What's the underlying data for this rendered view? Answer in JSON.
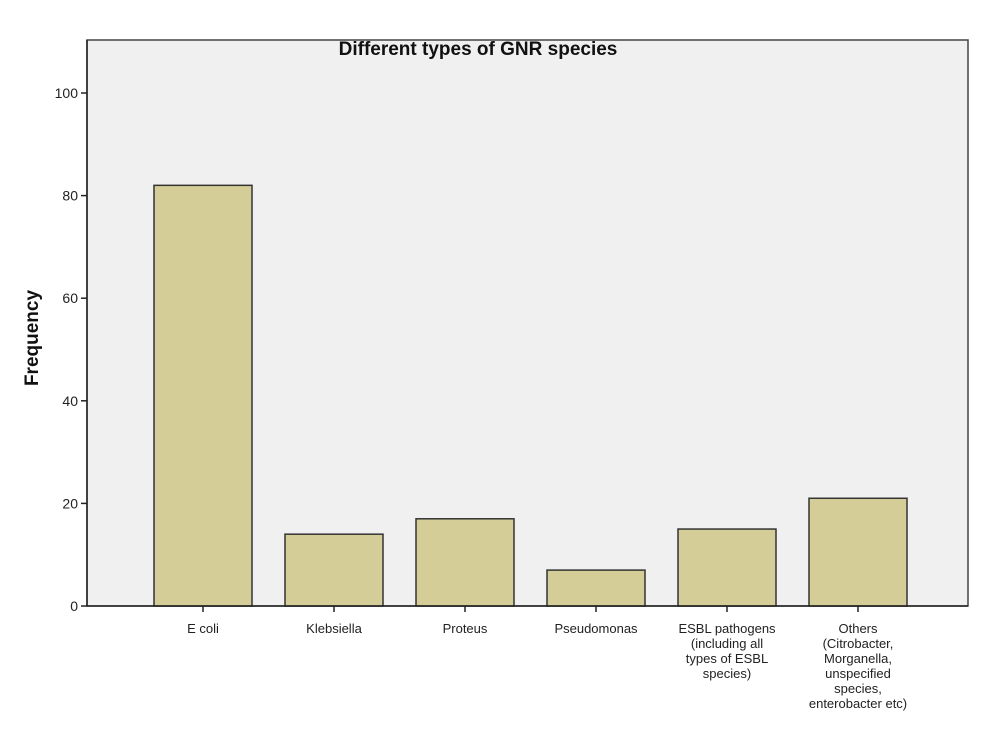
{
  "chart_data": {
    "type": "bar",
    "title": "Different types of GNR species",
    "xlabel": "",
    "ylabel": "Frequency",
    "ylim": [
      0,
      100
    ],
    "yticks": [
      0,
      20,
      40,
      60,
      80,
      100
    ],
    "grid": false,
    "categories": [
      [
        "E coli"
      ],
      [
        "Klebsiella"
      ],
      [
        "Proteus"
      ],
      [
        "Pseudomonas"
      ],
      [
        "ESBL pathogens",
        "(including all",
        "types of ESBL",
        "species)"
      ],
      [
        "Others",
        "(Citrobacter,",
        "Morganella,",
        "unspecified",
        "species,",
        "enterobacter etc)"
      ]
    ],
    "values": [
      82,
      14,
      17,
      7,
      15,
      21
    ],
    "colors": {
      "bar": "#d4cd98",
      "plot_background": "#f0f0f0",
      "outline": "#333333"
    }
  }
}
